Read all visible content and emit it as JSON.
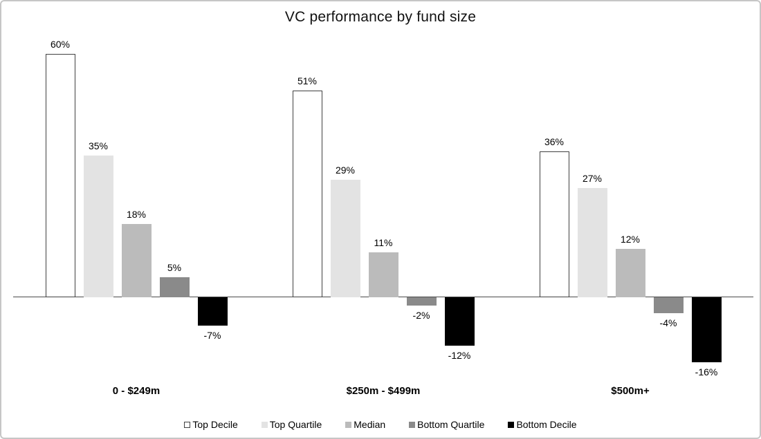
{
  "chart_data": {
    "type": "bar",
    "title": "VC performance by fund size",
    "categories": [
      "0 - $249m",
      "$250m - $499m",
      "$500m+"
    ],
    "series": [
      {
        "name": "Top Decile",
        "values": [
          60,
          51,
          36
        ],
        "fill": "#ffffff",
        "border": "#404040"
      },
      {
        "name": "Top Quartile",
        "values": [
          35,
          29,
          27
        ],
        "fill": "#e3e3e3",
        "border": null
      },
      {
        "name": "Median",
        "values": [
          18,
          11,
          12
        ],
        "fill": "#bbbbbb",
        "border": null
      },
      {
        "name": "Bottom Quartile",
        "values": [
          5,
          -2,
          -4
        ],
        "fill": "#8a8a8a",
        "border": null
      },
      {
        "name": "Bottom Decile",
        "values": [
          -7,
          -12,
          -16
        ],
        "fill": "#000000",
        "border": null
      }
    ],
    "value_labels": [
      [
        "60%",
        "51%",
        "36%"
      ],
      [
        "35%",
        "29%",
        "27%"
      ],
      [
        "18%",
        "11%",
        "12%"
      ],
      [
        "5%",
        "-2%",
        "-4%"
      ],
      [
        "-7%",
        "-12%",
        "-16%"
      ]
    ],
    "value_suffix": "%",
    "ylim": [
      -20,
      65
    ],
    "grid": false,
    "y_axis_ticks_visible": false,
    "legend_position": "bottom",
    "colors": {
      "axis": "#4a4a4a",
      "frame_border": "#c6c6c6",
      "text": "#000000"
    }
  }
}
